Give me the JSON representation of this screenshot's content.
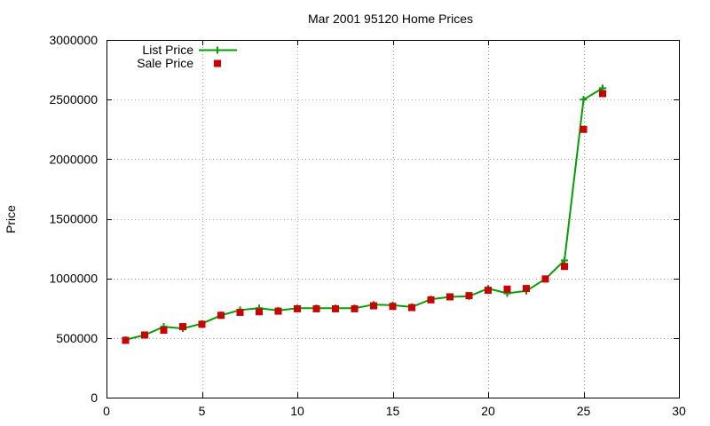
{
  "chart_data": {
    "type": "line",
    "title": "Mar 2001 95120 Home Prices",
    "xlabel": "",
    "ylabel": "Price",
    "xlim": [
      0,
      30
    ],
    "ylim": [
      0,
      3000000
    ],
    "xticks": [
      0,
      5,
      10,
      15,
      20,
      25,
      30
    ],
    "yticks": [
      0,
      500000,
      1000000,
      1500000,
      2000000,
      2500000,
      3000000
    ],
    "x_tick_labels": [
      "0",
      "5",
      "10",
      "15",
      "20",
      "25",
      "30"
    ],
    "y_tick_labels": [
      "0",
      "500000",
      "1000000",
      "1500000",
      "2000000",
      "2500000",
      "3000000"
    ],
    "grid": true,
    "legend_position": "top-left",
    "x": [
      1,
      2,
      3,
      4,
      5,
      6,
      7,
      8,
      9,
      10,
      11,
      12,
      13,
      14,
      15,
      16,
      17,
      18,
      19,
      20,
      21,
      22,
      23,
      24,
      25,
      26
    ],
    "series": [
      {
        "name": "List Price",
        "style": "line-with-plus-markers",
        "color": "#00a000",
        "values": [
          485000,
          525000,
          595000,
          580000,
          620000,
          690000,
          735000,
          750000,
          730000,
          750000,
          750000,
          750000,
          750000,
          780000,
          775000,
          760000,
          825000,
          845000,
          850000,
          915000,
          875000,
          895000,
          995000,
          1150000,
          2500000,
          2595000
        ]
      },
      {
        "name": "Sale Price",
        "style": "square-markers",
        "color": "#cc0000",
        "values": [
          480000,
          525000,
          565000,
          595000,
          615000,
          690000,
          715000,
          720000,
          725000,
          745000,
          745000,
          745000,
          745000,
          770000,
          765000,
          755000,
          820000,
          845000,
          855000,
          900000,
          910000,
          915000,
          995000,
          1100000,
          2250000,
          2550000
        ]
      }
    ]
  }
}
